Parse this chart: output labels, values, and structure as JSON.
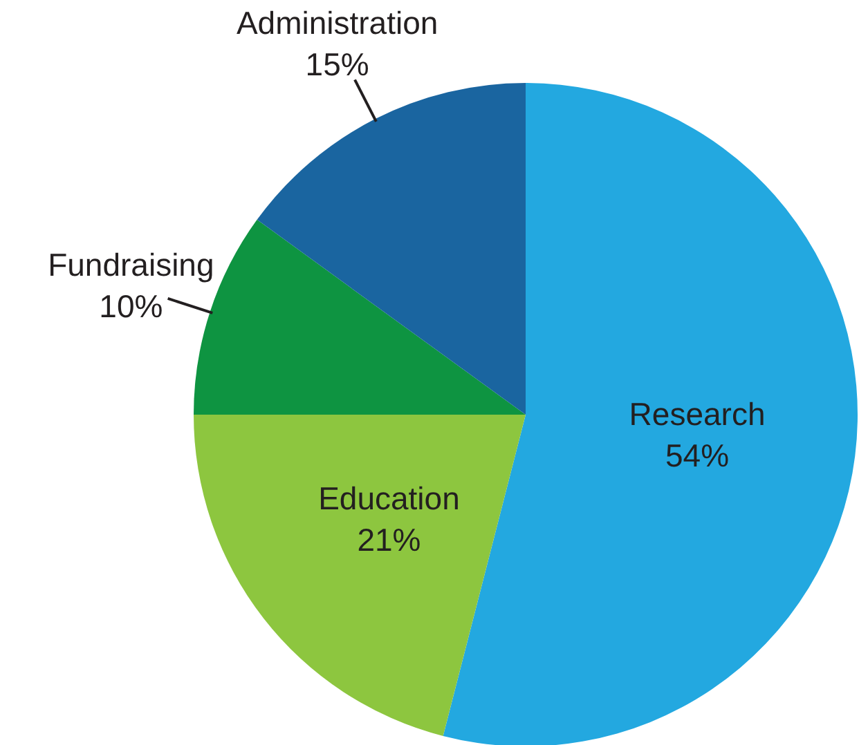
{
  "chart_data": {
    "type": "pie",
    "categories": [
      "Research",
      "Education",
      "Fundraising",
      "Administration"
    ],
    "values": [
      54,
      21,
      10,
      15
    ],
    "value_labels": [
      "54%",
      "21%",
      "10%",
      "15%"
    ],
    "colors": [
      "#23a8e0",
      "#8dc63f",
      "#0e9441",
      "#1a65a0"
    ]
  }
}
